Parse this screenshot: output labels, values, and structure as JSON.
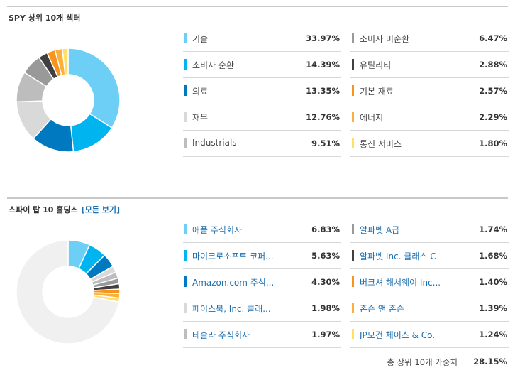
{
  "section1": {
    "title": "SPY 상위 10개 섹터",
    "items": [
      {
        "label": "기술",
        "value": "33.97%",
        "pct": 33.97,
        "color": "#6dcff6"
      },
      {
        "label": "소비자 순환",
        "value": "14.39%",
        "pct": 14.39,
        "color": "#00b4f0"
      },
      {
        "label": "의료",
        "value": "13.35%",
        "pct": 13.35,
        "color": "#0079c1"
      },
      {
        "label": "재무",
        "value": "12.76%",
        "pct": 12.76,
        "color": "#d9d9d9"
      },
      {
        "label": "Industrials",
        "value": "9.51%",
        "pct": 9.51,
        "color": "#bdbdbd"
      },
      {
        "label": "소비자 비순환",
        "value": "6.47%",
        "pct": 6.47,
        "color": "#999999"
      },
      {
        "label": "유틸리티",
        "value": "2.88%",
        "pct": 2.88,
        "color": "#404040"
      },
      {
        "label": "기본 재료",
        "value": "2.57%",
        "pct": 2.57,
        "color": "#f7941d"
      },
      {
        "label": "에너지",
        "value": "2.29%",
        "pct": 2.29,
        "color": "#fbb03b"
      },
      {
        "label": "통신 서비스",
        "value": "1.80%",
        "pct": 1.8,
        "color": "#ffe066"
      }
    ]
  },
  "section2": {
    "title": "스파이 탑 10 홀딩스",
    "view_all": "[모든 보기]",
    "items": [
      {
        "label": "애플 주식회사",
        "value": "6.83%",
        "pct": 6.83,
        "color": "#6dcff6"
      },
      {
        "label": "마이크로소프트 코퍼...",
        "value": "5.63%",
        "pct": 5.63,
        "color": "#00b4f0"
      },
      {
        "label": "Amazon.com 주식...",
        "value": "4.30%",
        "pct": 4.3,
        "color": "#0079c1"
      },
      {
        "label": "페이스북, Inc. 클래...",
        "value": "1.98%",
        "pct": 1.98,
        "color": "#d9d9d9"
      },
      {
        "label": "테슬라 주식회사",
        "value": "1.97%",
        "pct": 1.97,
        "color": "#bdbdbd"
      },
      {
        "label": "알파벳 A급",
        "value": "1.74%",
        "pct": 1.74,
        "color": "#999999"
      },
      {
        "label": "알파벳 Inc. 클래스 C",
        "value": "1.68%",
        "pct": 1.68,
        "color": "#404040"
      },
      {
        "label": "버크셔 해서웨이 Inc...",
        "value": "1.40%",
        "pct": 1.4,
        "color": "#f7941d"
      },
      {
        "label": "존슨 앤 존슨",
        "value": "1.39%",
        "pct": 1.39,
        "color": "#fbb03b"
      },
      {
        "label": "JP모건 체이스 & Co.",
        "value": "1.24%",
        "pct": 1.24,
        "color": "#ffe066"
      }
    ],
    "remainder_color": "#f0f0f0",
    "total_label": "총 상위 10개 가중치",
    "total_value": "28.15%"
  }
}
